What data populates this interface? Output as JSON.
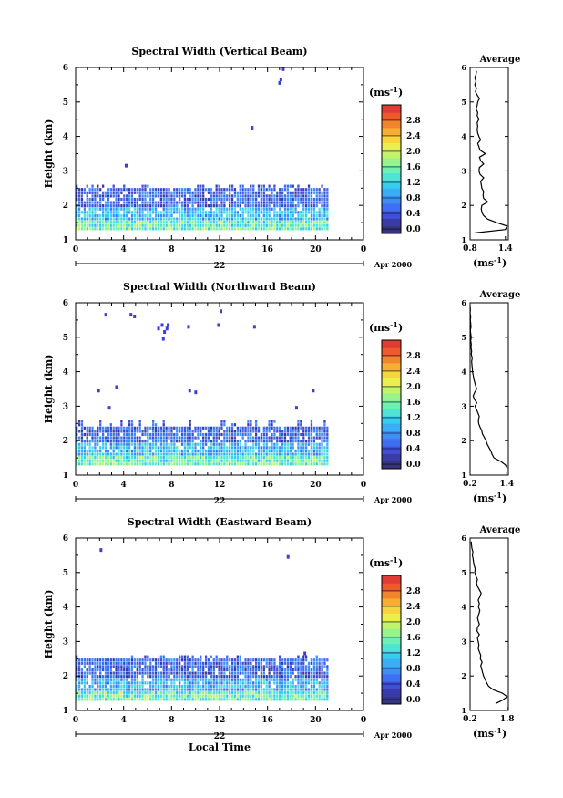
{
  "figure": {
    "y_ticks": [
      "1",
      "2",
      "3",
      "4",
      "5",
      "6"
    ],
    "x_ticks": [
      "0",
      "4",
      "8",
      "12",
      "16",
      "20",
      "0"
    ],
    "date_day": "22",
    "date_month": "Apr 2000",
    "colorbar_unit": "(ms",
    "unit_exp": "-1",
    "unit_close": ")",
    "avg_unit": "(ms",
    "bottom_xlabel": "Local Time",
    "colorscale": [
      "#35357a",
      "#3a3aa8",
      "#3f4fd6",
      "#3f6ef0",
      "#3d8ef5",
      "#3aaef5",
      "#36cdef",
      "#4ee3d5",
      "#6ef0b5",
      "#97f38e",
      "#c3f36a",
      "#eaef4d",
      "#f6d43e",
      "#f7ae35",
      "#f3842e",
      "#ec5a2d",
      "#e23a35"
    ]
  },
  "chart_data": [
    {
      "type": "heatmap",
      "title": "Spectral Width (Vertical Beam)",
      "ylabel": "Height (km)",
      "ylim": [
        1,
        6
      ],
      "xlim": [
        0,
        24
      ],
      "colorbar_ticks": [
        "0.0",
        "0.4",
        "0.8",
        "1.2",
        "1.6",
        "2.0",
        "2.4",
        "2.8"
      ],
      "colorbar_range": [
        0,
        3.0
      ],
      "echo_layer_top_km": 2.45,
      "profile": {
        "title": "Average",
        "xticks": [
          "0.8",
          "1.4"
        ],
        "xlim": [
          0.8,
          1.45
        ],
        "heights": [
          1.2,
          1.3,
          1.4,
          1.5,
          1.6,
          1.7,
          1.8,
          1.9,
          2.0,
          2.1,
          2.2,
          2.3,
          2.4,
          2.5,
          2.6,
          2.7,
          2.8,
          2.9,
          3.0,
          3.1,
          3.2,
          3.3,
          3.4,
          3.5,
          3.6,
          3.7,
          3.8,
          3.9,
          4.0,
          4.1,
          4.2,
          4.3,
          4.4,
          4.5,
          4.6,
          4.7,
          4.8,
          4.9,
          5.0,
          5.1,
          5.2,
          5.3,
          5.4,
          5.5,
          5.6,
          5.7,
          5.8,
          5.9
        ],
        "values": [
          0.88,
          1.4,
          1.43,
          1.25,
          1.1,
          1.03,
          1.0,
          0.99,
          1.0,
          1.1,
          1.03,
          1.02,
          1.03,
          1.0,
          0.99,
          0.98,
          1.03,
          0.97,
          0.95,
          0.96,
          1.03,
          0.98,
          0.96,
          1.06,
          0.97,
          0.95,
          0.93,
          0.98,
          0.95,
          0.93,
          0.92,
          0.93,
          0.92,
          0.95,
          0.92,
          0.93,
          0.9,
          0.92,
          0.93,
          0.96,
          0.92,
          0.89,
          0.91,
          0.88,
          0.9,
          0.88,
          0.9,
          0.91
        ]
      },
      "scatter_echoes": [
        [
          4.1,
          3.1
        ],
        [
          14.6,
          4.2
        ],
        [
          16.9,
          5.5
        ],
        [
          17.0,
          5.6
        ],
        [
          17.2,
          5.9
        ]
      ]
    },
    {
      "type": "heatmap",
      "title": "Spectral Width (Northward Beam)",
      "ylabel": "Height (km)",
      "ylim": [
        1,
        6
      ],
      "xlim": [
        0,
        24
      ],
      "colorbar_ticks": [
        "0.0",
        "0.4",
        "0.8",
        "1.2",
        "1.6",
        "2.0",
        "2.4",
        "2.8"
      ],
      "colorbar_range": [
        0,
        3.0
      ],
      "echo_layer_top_km": 2.4,
      "profile": {
        "title": "Average",
        "xticks": [
          "0.2",
          "1.4"
        ],
        "xlim": [
          0.2,
          1.45
        ],
        "heights": [
          1.2,
          1.3,
          1.4,
          1.5,
          1.6,
          1.7,
          1.8,
          1.9,
          2.0,
          2.1,
          2.2,
          2.3,
          2.4,
          2.5,
          2.6,
          2.7,
          2.8,
          2.9,
          3.0,
          3.1,
          3.2,
          3.3,
          3.4,
          3.5,
          3.6,
          3.7,
          3.8,
          3.9,
          4.0,
          4.1,
          4.2,
          4.3,
          4.4,
          4.5,
          4.6,
          4.7,
          4.8,
          4.9,
          5.0,
          5.1,
          5.2,
          5.3,
          5.4,
          5.5,
          5.6,
          5.7,
          5.8,
          5.9
        ],
        "values": [
          1.42,
          1.35,
          1.2,
          0.98,
          0.92,
          0.88,
          0.82,
          0.76,
          0.72,
          0.66,
          0.6,
          0.58,
          0.52,
          0.48,
          0.47,
          0.5,
          0.46,
          0.41,
          0.36,
          0.42,
          0.34,
          0.3,
          0.35,
          0.42,
          0.38,
          0.35,
          0.32,
          0.3,
          0.28,
          0.27,
          0.26,
          0.25,
          0.27,
          0.24,
          0.25,
          0.23,
          0.24,
          0.22,
          0.24,
          0.22,
          0.21,
          0.23,
          0.22,
          0.21,
          0.22,
          0.2,
          0.21,
          0.2
        ]
      },
      "scatter_echoes": [
        [
          2.4,
          5.6
        ],
        [
          4.5,
          5.6
        ],
        [
          4.8,
          5.55
        ],
        [
          6.8,
          5.2
        ],
        [
          7.1,
          5.3
        ],
        [
          7.3,
          5.1
        ],
        [
          7.6,
          5.3
        ],
        [
          7.5,
          5.2
        ],
        [
          7.2,
          4.9
        ],
        [
          9.3,
          5.25
        ],
        [
          12.0,
          5.7
        ],
        [
          11.8,
          5.3
        ],
        [
          14.8,
          5.25
        ],
        [
          1.8,
          3.4
        ],
        [
          3.3,
          3.5
        ],
        [
          9.4,
          3.4
        ],
        [
          9.9,
          3.35
        ],
        [
          2.7,
          2.9
        ],
        [
          18.3,
          2.9
        ],
        [
          19.7,
          3.4
        ]
      ]
    },
    {
      "type": "heatmap",
      "title": "Spectral Width (Eastward Beam)",
      "ylabel": "Height (km)",
      "xlabel": "Local Time",
      "ylim": [
        1,
        6
      ],
      "xlim": [
        0,
        24
      ],
      "colorbar_ticks": [
        "0.0",
        "0.4",
        "0.8",
        "1.2",
        "1.6",
        "2.0",
        "2.4",
        "2.8"
      ],
      "colorbar_range": [
        0,
        3.0
      ],
      "echo_layer_top_km": 2.45,
      "profile": {
        "title": "Average",
        "xticks": [
          "0.2",
          "1.8"
        ],
        "xlim": [
          0.2,
          1.85
        ],
        "heights": [
          1.2,
          1.3,
          1.4,
          1.5,
          1.6,
          1.7,
          1.8,
          1.9,
          2.0,
          2.1,
          2.2,
          2.3,
          2.4,
          2.5,
          2.6,
          2.7,
          2.8,
          2.9,
          3.0,
          3.1,
          3.2,
          3.3,
          3.4,
          3.5,
          3.6,
          3.7,
          3.8,
          3.9,
          4.0,
          4.1,
          4.2,
          4.3,
          4.4,
          4.5,
          4.6,
          4.7,
          4.8,
          4.9,
          5.0,
          5.1,
          5.2,
          5.3,
          5.4,
          5.5,
          5.6,
          5.7,
          5.8,
          5.9
        ],
        "values": [
          1.3,
          1.6,
          1.8,
          1.6,
          1.2,
          1.0,
          0.92,
          0.85,
          0.78,
          0.74,
          0.7,
          0.66,
          0.72,
          0.64,
          0.66,
          0.6,
          0.55,
          0.58,
          0.55,
          0.52,
          0.6,
          0.5,
          0.52,
          0.6,
          0.55,
          0.52,
          0.58,
          0.62,
          0.56,
          0.6,
          0.55,
          0.62,
          0.68,
          0.6,
          0.52,
          0.48,
          0.52,
          0.45,
          0.4,
          0.42,
          0.38,
          0.35,
          0.33,
          0.3,
          0.32,
          0.28,
          0.26,
          0.25
        ]
      },
      "scatter_echoes": [
        [
          2.0,
          5.6
        ],
        [
          17.6,
          5.4
        ],
        [
          19.0,
          2.6
        ]
      ]
    }
  ]
}
